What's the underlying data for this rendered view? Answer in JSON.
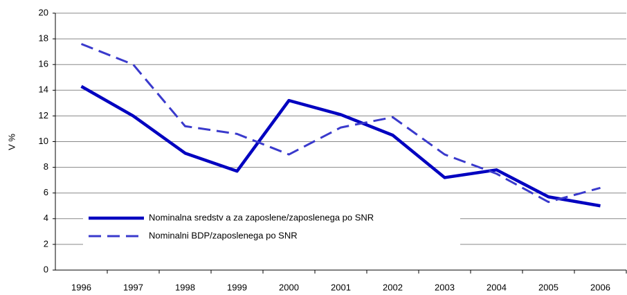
{
  "chart_data": {
    "type": "line",
    "y_label": "V %",
    "categories": [
      "1996",
      "1997",
      "1998",
      "1999",
      "2000",
      "2001",
      "2002",
      "2003",
      "2004",
      "2005",
      "2006"
    ],
    "series": [
      {
        "name": "Nominalna sredstv a za zaposlene/zaposlenega po SNR",
        "color": "#0000c0",
        "dash": false,
        "values": [
          14.3,
          12.0,
          9.1,
          7.7,
          13.2,
          12.1,
          10.5,
          7.2,
          7.8,
          5.7,
          5.0
        ]
      },
      {
        "name": "Nominalni BDP/zaposlenega po SNR",
        "color": "#3a3acc",
        "dash": true,
        "values": [
          17.6,
          16.0,
          11.2,
          10.6,
          9.0,
          11.1,
          11.9,
          9.0,
          7.5,
          5.3,
          6.4
        ]
      }
    ],
    "ylim": [
      0,
      20
    ],
    "yticks": [
      0,
      2,
      4,
      6,
      8,
      10,
      12,
      14,
      16,
      18,
      20
    ],
    "grid": true,
    "legend": "lower left"
  }
}
